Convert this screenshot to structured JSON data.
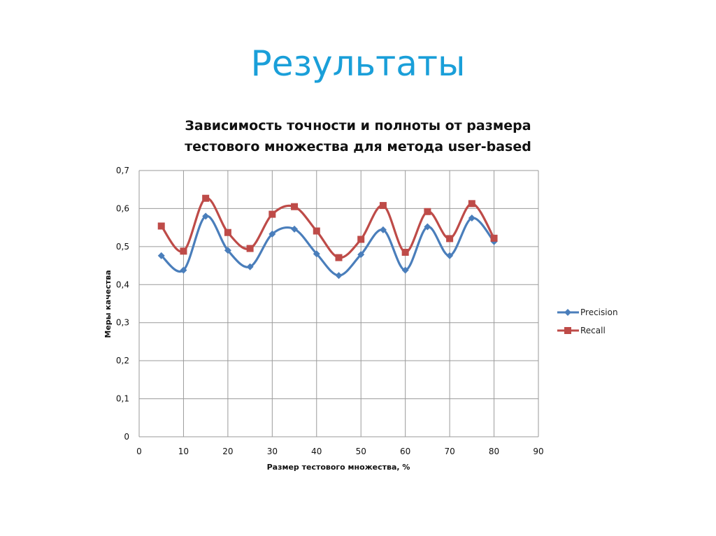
{
  "slide": {
    "title": "Результаты"
  },
  "chart_data": {
    "type": "line",
    "title": "Зависимость точности и полноты от размера тестового множества для метода user-based",
    "title_lines": [
      "Зависимость точности и полноты от размера",
      "тестового множества для метода user-based"
    ],
    "xlabel": "Размер тестового множества, %",
    "ylabel": "Меры качества",
    "xlim": [
      0,
      90
    ],
    "ylim": [
      0,
      0.7
    ],
    "x_ticks": [
      "0",
      "10",
      "20",
      "30",
      "40",
      "50",
      "60",
      "70",
      "80",
      "90"
    ],
    "y_ticks": [
      "0",
      "0,1",
      "0,2",
      "0,3",
      "0,4",
      "0,5",
      "0,6",
      "0,7"
    ],
    "grid": true,
    "legend_position": "right",
    "smoothed": true,
    "x": [
      5,
      10,
      15,
      20,
      25,
      30,
      35,
      40,
      45,
      50,
      55,
      60,
      65,
      70,
      75,
      80
    ],
    "series": [
      {
        "name": "Precision",
        "color": "#4a7ebb",
        "marker": "diamond",
        "values": [
          0.476,
          0.438,
          0.58,
          0.49,
          0.447,
          0.533,
          0.546,
          0.481,
          0.424,
          0.479,
          0.544,
          0.438,
          0.552,
          0.476,
          0.575,
          0.513
        ]
      },
      {
        "name": "Recall",
        "color": "#be4b48",
        "marker": "square",
        "values": [
          0.554,
          0.488,
          0.627,
          0.537,
          0.495,
          0.585,
          0.605,
          0.541,
          0.471,
          0.519,
          0.608,
          0.485,
          0.592,
          0.521,
          0.613,
          0.522
        ]
      }
    ]
  }
}
